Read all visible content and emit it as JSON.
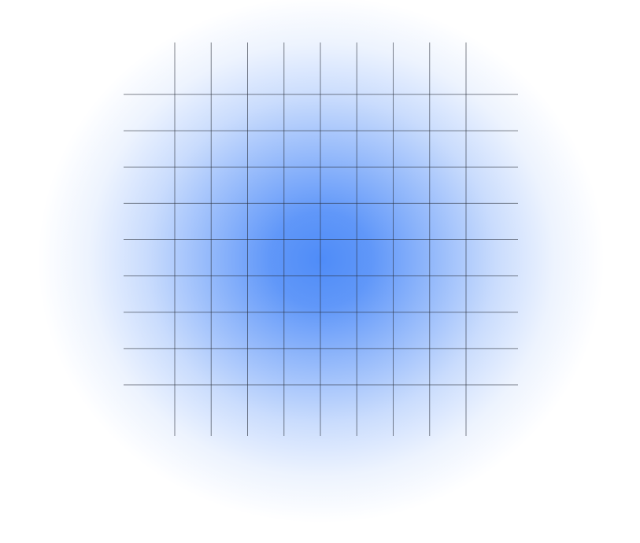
{
  "colors": {
    "gradient_center": "#4f8cf8",
    "background": "#ffffff",
    "grid_line": "#2a2f3a"
  },
  "grid": {
    "vertical_line_count": 9,
    "horizontal_line_count": 9
  }
}
